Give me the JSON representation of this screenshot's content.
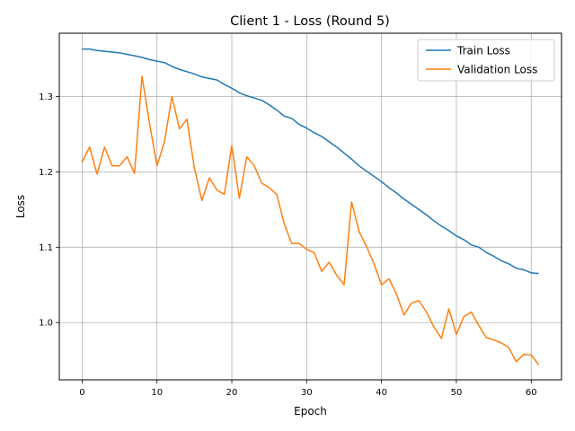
{
  "chart_data": {
    "type": "line",
    "title": "Client 1 - Loss (Round 5)",
    "xlabel": "Epoch",
    "ylabel": "Loss",
    "xlim": [
      -3.05,
      64.05
    ],
    "ylim": [
      0.924,
      1.384
    ],
    "xticks": [
      0,
      10,
      20,
      30,
      40,
      50,
      60
    ],
    "yticks": [
      1.0,
      1.1,
      1.2,
      1.3
    ],
    "grid": true,
    "legend_position": "top-right",
    "series": [
      {
        "name": "Train Loss",
        "color": "#1f77b4",
        "x": [
          0,
          1,
          2,
          3,
          4,
          5,
          6,
          7,
          8,
          9,
          10,
          11,
          12,
          13,
          14,
          15,
          16,
          17,
          18,
          19,
          20,
          21,
          22,
          23,
          24,
          25,
          26,
          27,
          28,
          29,
          30,
          31,
          32,
          33,
          34,
          35,
          36,
          37,
          38,
          39,
          40,
          41,
          42,
          43,
          44,
          45,
          46,
          47,
          48,
          49,
          50,
          51,
          52,
          53,
          54,
          55,
          56,
          57,
          58,
          59,
          60,
          61
        ],
        "values": [
          1.363,
          1.363,
          1.361,
          1.36,
          1.359,
          1.358,
          1.356,
          1.354,
          1.352,
          1.349,
          1.347,
          1.345,
          1.34,
          1.336,
          1.333,
          1.33,
          1.326,
          1.324,
          1.322,
          1.316,
          1.311,
          1.305,
          1.301,
          1.298,
          1.295,
          1.289,
          1.282,
          1.274,
          1.271,
          1.263,
          1.258,
          1.252,
          1.247,
          1.24,
          1.233,
          1.225,
          1.217,
          1.208,
          1.201,
          1.194,
          1.187,
          1.179,
          1.172,
          1.164,
          1.157,
          1.15,
          1.143,
          1.135,
          1.128,
          1.122,
          1.115,
          1.11,
          1.103,
          1.1,
          1.093,
          1.088,
          1.082,
          1.078,
          1.072,
          1.07,
          1.066,
          1.065
        ]
      },
      {
        "name": "Validation Loss",
        "color": "#ff7f0e",
        "x": [
          0,
          1,
          2,
          3,
          4,
          5,
          6,
          7,
          8,
          9,
          10,
          11,
          12,
          13,
          14,
          15,
          16,
          17,
          18,
          19,
          20,
          21,
          22,
          23,
          24,
          25,
          26,
          27,
          28,
          29,
          30,
          31,
          32,
          33,
          34,
          35,
          36,
          37,
          38,
          39,
          40,
          41,
          42,
          43,
          44,
          45,
          46,
          47,
          48,
          49,
          50,
          51,
          52,
          53,
          54,
          55,
          56,
          57,
          58,
          59,
          60,
          61
        ],
        "values": [
          1.213,
          1.233,
          1.197,
          1.233,
          1.208,
          1.208,
          1.22,
          1.198,
          1.327,
          1.265,
          1.208,
          1.24,
          1.3,
          1.257,
          1.27,
          1.205,
          1.162,
          1.192,
          1.176,
          1.17,
          1.235,
          1.165,
          1.22,
          1.208,
          1.185,
          1.179,
          1.17,
          1.131,
          1.105,
          1.105,
          1.097,
          1.093,
          1.068,
          1.08,
          1.063,
          1.05,
          1.16,
          1.121,
          1.101,
          1.078,
          1.05,
          1.058,
          1.038,
          1.01,
          1.026,
          1.029,
          1.014,
          0.994,
          0.979,
          1.018,
          0.984,
          1.008,
          1.014,
          0.996,
          0.98,
          0.977,
          0.973,
          0.967,
          0.948,
          0.958,
          0.957,
          0.944
        ]
      }
    ]
  }
}
